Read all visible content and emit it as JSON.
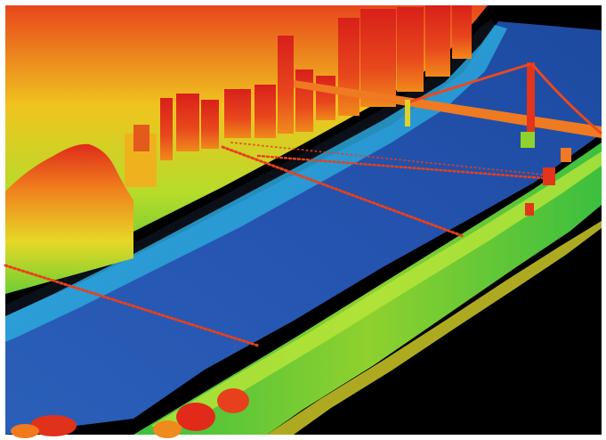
{
  "scene": {
    "palette": {
      "background": "#000000",
      "water_deep": "#1f4fa8",
      "water_mid": "#2a63bf",
      "water_shallow": "#1fa3d6",
      "bank_low": "#2fb84a",
      "vegetation": "#8fd12e",
      "mid": "#e8e12a",
      "high": "#f39a1a",
      "highest": "#e0251b",
      "frame": "#ffffff"
    }
  }
}
